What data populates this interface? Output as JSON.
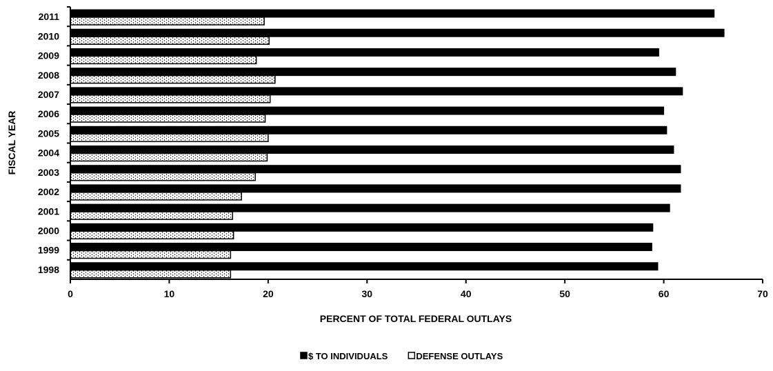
{
  "chart_data": {
    "type": "bar",
    "orientation": "horizontal",
    "title": "",
    "xlabel": "PERCENT OF TOTAL FEDERAL OUTLAYS",
    "ylabel": "FISCAL YEAR",
    "xlim": [
      0,
      70
    ],
    "x_ticks": [
      "0",
      "10",
      "20",
      "30",
      "40",
      "50",
      "60",
      "70"
    ],
    "categories": [
      "1998",
      "1999",
      "2000",
      "2001",
      "2002",
      "2003",
      "2004",
      "2005",
      "2006",
      "2007",
      "2008",
      "2009",
      "2010",
      "2011"
    ],
    "series": [
      {
        "name": "$ TO INDIVIDUALS",
        "color": "#000000",
        "values": [
          59.4,
          58.8,
          58.9,
          60.6,
          61.7,
          61.7,
          61.0,
          60.3,
          60.0,
          61.9,
          61.2,
          59.5,
          66.1,
          65.1
        ]
      },
      {
        "name": "DEFENSE OUTLAYS",
        "color": "#ffffff",
        "pattern": "dotted",
        "values": [
          16.2,
          16.2,
          16.5,
          16.4,
          17.3,
          18.7,
          19.9,
          20.0,
          19.7,
          20.2,
          20.7,
          18.8,
          20.1,
          19.6
        ]
      }
    ],
    "grid": false,
    "legend_position": "bottom-center"
  }
}
